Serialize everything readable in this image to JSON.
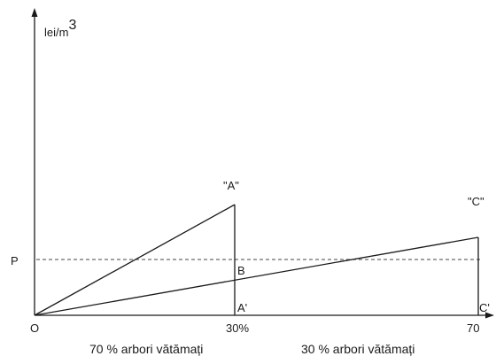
{
  "axes": {
    "y_unit": "lei/m",
    "y_unit_exponent": "3"
  },
  "points": {
    "origin": "O",
    "A_top": "\"A\"",
    "C_top": "\"C\"",
    "B": "B",
    "A_base": "A'",
    "C_base": "C'",
    "price_level": "P"
  },
  "ticks": {
    "x1": "30%",
    "x2": "70"
  },
  "captions": {
    "left": "70 % arbori vătămați",
    "right": "30 % arbori vătămați"
  },
  "colors": {
    "ink": "#1a1a1a",
    "dashed": "#444444"
  }
}
